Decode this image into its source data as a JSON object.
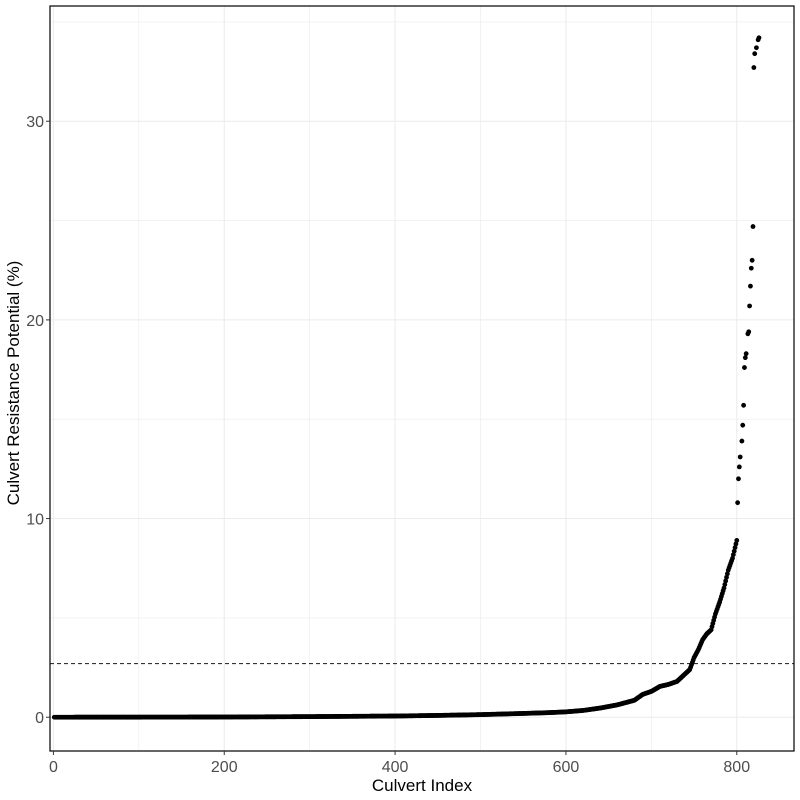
{
  "chart_data": {
    "type": "scatter",
    "title": "",
    "xlabel": "Culvert Index",
    "ylabel": "Culvert Resistance Potential (%)",
    "xlim": [
      -4,
      867
    ],
    "ylim": [
      -1.7,
      35.8
    ],
    "x_ticks": [
      0,
      200,
      400,
      600,
      800
    ],
    "y_ticks": [
      0,
      10,
      20,
      30
    ],
    "grid": true,
    "reference_line": {
      "orientation": "horizontal",
      "y": 2.7,
      "style": "dashed"
    },
    "point_color": "#000000",
    "n_points": 827,
    "curve_knots": [
      [
        1,
        0.0
      ],
      [
        100,
        0.003
      ],
      [
        200,
        0.01
      ],
      [
        300,
        0.03
      ],
      [
        400,
        0.06
      ],
      [
        450,
        0.09
      ],
      [
        500,
        0.13
      ],
      [
        550,
        0.19
      ],
      [
        580,
        0.23
      ],
      [
        600,
        0.27
      ],
      [
        620,
        0.34
      ],
      [
        640,
        0.46
      ],
      [
        660,
        0.62
      ],
      [
        680,
        0.85
      ],
      [
        690,
        1.15
      ],
      [
        700,
        1.3
      ],
      [
        710,
        1.55
      ],
      [
        720,
        1.65
      ],
      [
        730,
        1.8
      ],
      [
        740,
        2.2
      ],
      [
        745,
        2.4
      ],
      [
        750,
        3.0
      ],
      [
        755,
        3.4
      ],
      [
        760,
        3.9
      ],
      [
        765,
        4.2
      ],
      [
        770,
        4.4
      ],
      [
        775,
        5.2
      ],
      [
        780,
        5.8
      ],
      [
        785,
        6.5
      ],
      [
        790,
        7.4
      ],
      [
        795,
        8.0
      ],
      [
        800,
        8.9
      ],
      [
        801,
        10.8
      ]
    ],
    "outliers": [
      [
        802,
        12.0
      ],
      [
        803,
        12.6
      ],
      [
        804,
        13.1
      ],
      [
        806,
        13.9
      ],
      [
        807,
        14.7
      ],
      [
        808,
        15.7
      ],
      [
        809,
        17.6
      ],
      [
        810,
        18.1
      ],
      [
        811,
        18.3
      ],
      [
        813,
        19.3
      ],
      [
        814,
        19.4
      ],
      [
        815,
        20.7
      ],
      [
        816,
        21.7
      ],
      [
        817,
        22.6
      ],
      [
        818,
        23.0
      ],
      [
        819,
        24.7
      ],
      [
        820,
        32.7
      ],
      [
        821,
        33.4
      ],
      [
        823,
        33.7
      ],
      [
        825,
        34.1
      ],
      [
        826,
        34.2
      ]
    ]
  }
}
